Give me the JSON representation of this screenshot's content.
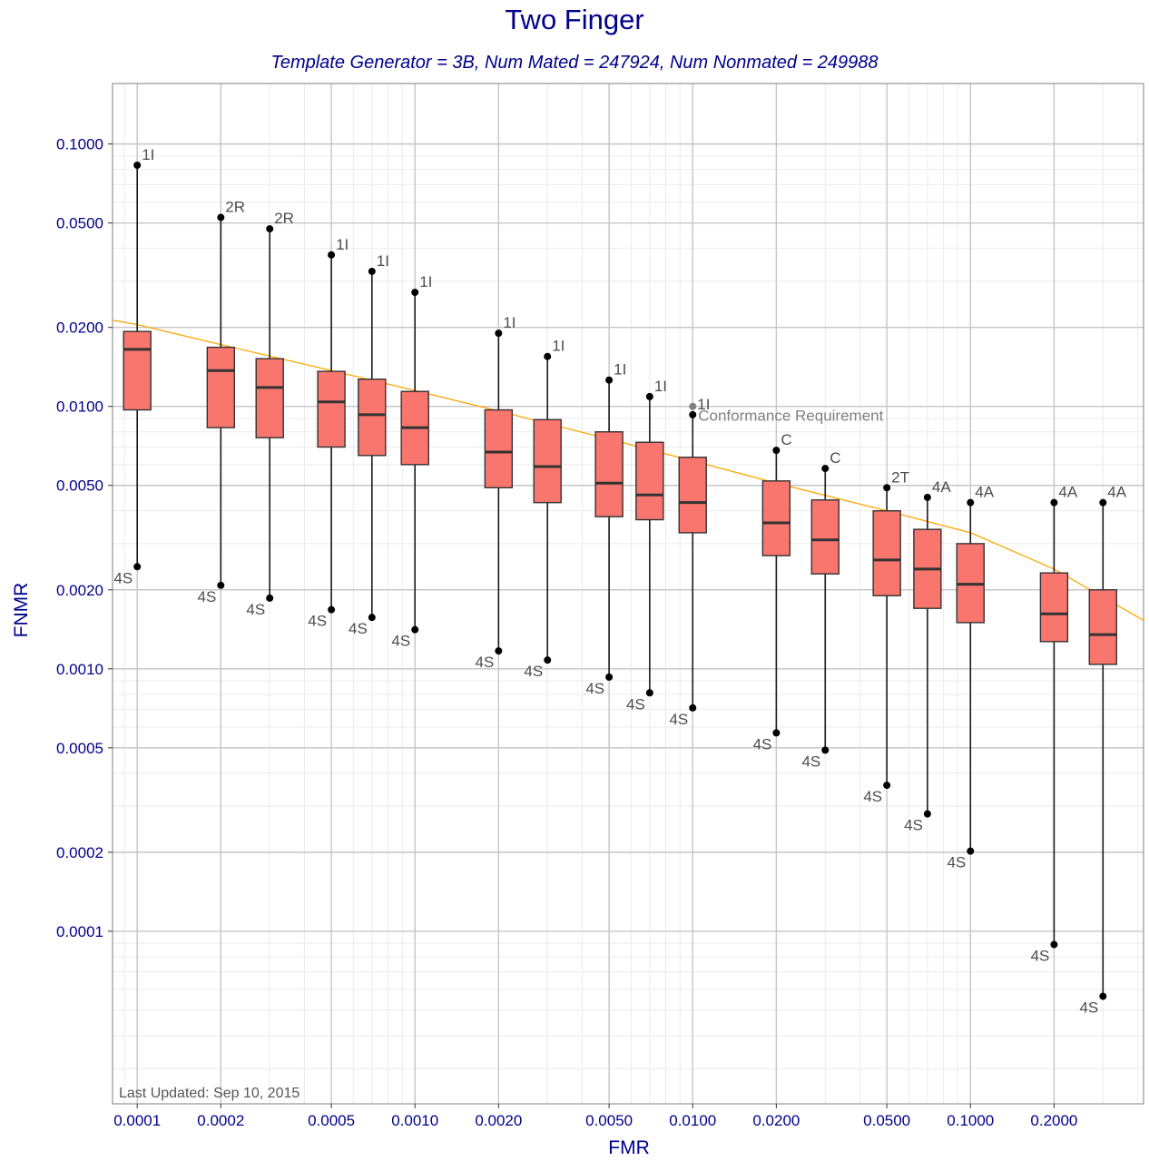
{
  "chart_data": {
    "type": "box",
    "title": "Two Finger",
    "subtitle": "Template Generator = 3B,   Num Mated = 247924,   Num Nonmated = 249988",
    "xlabel": "FMR",
    "ylabel": "FNMR",
    "x_scale": "log",
    "y_scale": "log",
    "xlim": [
      8.15e-05,
      0.42
    ],
    "ylim": [
      2.2e-05,
      0.17
    ],
    "x_ticks": [
      "0.0001",
      "0.0002",
      "0.0005",
      "0.0010",
      "0.0020",
      "0.0050",
      "0.0100",
      "0.0200",
      "0.0500",
      "0.1000",
      "0.2000"
    ],
    "x_tick_values": [
      0.0001,
      0.0002,
      0.0005,
      0.001,
      0.002,
      0.005,
      0.01,
      0.02,
      0.05,
      0.1,
      0.2
    ],
    "y_ticks": [
      "0.0001",
      "0.0002",
      "0.0005",
      "0.0010",
      "0.0020",
      "0.0050",
      "0.0100",
      "0.0200",
      "0.0500",
      "0.1000"
    ],
    "y_tick_values": [
      0.0001,
      0.0002,
      0.0005,
      0.001,
      0.002,
      0.005,
      0.01,
      0.02,
      0.05,
      0.1
    ],
    "grid": true,
    "colors": {
      "box_fill": "#f8766d",
      "box_stroke": "#333333",
      "whisker": "#1a1a1a",
      "point": "#000000",
      "label": "#4d4d4d",
      "tick_label": "#00008b",
      "requirement_line": "#ffa500",
      "requirement_point": "#808080",
      "grid_major": "#c6c6c6",
      "grid_minor": "#ebebeb"
    },
    "boxes": [
      {
        "x": 0.0001,
        "low": 0.00245,
        "q1": 0.0097,
        "median": 0.0165,
        "q3": 0.0193,
        "high": 0.083,
        "high_label": "1I",
        "low_label": "4S"
      },
      {
        "x": 0.0002,
        "low": 0.00208,
        "q1": 0.0083,
        "median": 0.0137,
        "q3": 0.0168,
        "high": 0.0525,
        "high_label": "2R",
        "low_label": "4S"
      },
      {
        "x": 0.0003,
        "low": 0.00186,
        "q1": 0.0076,
        "median": 0.0118,
        "q3": 0.0152,
        "high": 0.0475,
        "high_label": "2R",
        "low_label": "4S"
      },
      {
        "x": 0.0005,
        "low": 0.00168,
        "q1": 0.007,
        "median": 0.0104,
        "q3": 0.0136,
        "high": 0.0378,
        "high_label": "1I",
        "low_label": "4S"
      },
      {
        "x": 0.0007,
        "low": 0.00157,
        "q1": 0.0065,
        "median": 0.0093,
        "q3": 0.0127,
        "high": 0.0327,
        "high_label": "1I",
        "low_label": "4S"
      },
      {
        "x": 0.001,
        "low": 0.00141,
        "q1": 0.006,
        "median": 0.0083,
        "q3": 0.0114,
        "high": 0.0272,
        "high_label": "1I",
        "low_label": "4S"
      },
      {
        "x": 0.002,
        "low": 0.00117,
        "q1": 0.0049,
        "median": 0.0067,
        "q3": 0.0097,
        "high": 0.019,
        "high_label": "1I",
        "low_label": "4S"
      },
      {
        "x": 0.003,
        "low": 0.00108,
        "q1": 0.0043,
        "median": 0.0059,
        "q3": 0.0089,
        "high": 0.0155,
        "high_label": "1I",
        "low_label": "4S"
      },
      {
        "x": 0.005,
        "low": 0.00093,
        "q1": 0.0038,
        "median": 0.0051,
        "q3": 0.008,
        "high": 0.0126,
        "high_label": "1I",
        "low_label": "4S"
      },
      {
        "x": 0.007,
        "low": 0.00081,
        "q1": 0.0037,
        "median": 0.0046,
        "q3": 0.0073,
        "high": 0.0109,
        "high_label": "1I",
        "low_label": "4S"
      },
      {
        "x": 0.01,
        "low": 0.00071,
        "q1": 0.0033,
        "median": 0.0043,
        "q3": 0.0064,
        "high": 0.0093,
        "high_label": "1I",
        "low_label": "4S"
      },
      {
        "x": 0.02,
        "low": 0.00057,
        "q1": 0.0027,
        "median": 0.0036,
        "q3": 0.0052,
        "high": 0.0068,
        "high_label": "C",
        "low_label": "4S"
      },
      {
        "x": 0.03,
        "low": 0.00049,
        "q1": 0.0023,
        "median": 0.0031,
        "q3": 0.0044,
        "high": 0.0058,
        "high_label": "C",
        "low_label": "4S"
      },
      {
        "x": 0.05,
        "low": 0.00036,
        "q1": 0.0019,
        "median": 0.0026,
        "q3": 0.004,
        "high": 0.0049,
        "high_label": "2T",
        "low_label": "4S"
      },
      {
        "x": 0.07,
        "low": 0.00028,
        "q1": 0.0017,
        "median": 0.0024,
        "q3": 0.0034,
        "high": 0.0045,
        "high_label": "4A",
        "low_label": "4S"
      },
      {
        "x": 0.1,
        "low": 0.000202,
        "q1": 0.0015,
        "median": 0.0021,
        "q3": 0.003,
        "high": 0.0043,
        "high_label": "4A",
        "low_label": "4S"
      },
      {
        "x": 0.2,
        "low": 8.9e-05,
        "q1": 0.00127,
        "median": 0.00162,
        "q3": 0.00232,
        "high": 0.0043,
        "high_label": "4A",
        "low_label": "4S"
      },
      {
        "x": 0.3,
        "low": 5.65e-05,
        "q1": 0.00104,
        "median": 0.00135,
        "q3": 0.002,
        "high": 0.0043,
        "high_label": "4A",
        "low_label": "4S"
      }
    ],
    "requirement_point": {
      "x": 0.01,
      "y": 0.01,
      "label": "1I"
    },
    "annotation": "Conformance Requirement",
    "requirement_line": {
      "x": [
        8.15e-05,
        0.0001,
        0.0002,
        0.0005,
        0.001,
        0.002,
        0.005,
        0.01,
        0.02,
        0.05,
        0.1,
        0.2,
        0.42
      ],
      "y": [
        0.0213,
        0.0205,
        0.0172,
        0.0137,
        0.0115,
        0.0096,
        0.0075,
        0.0062,
        0.0051,
        0.004,
        0.0033,
        0.0024,
        0.00153
      ]
    }
  },
  "footnote": "Last Updated: Sep 10, 2015"
}
